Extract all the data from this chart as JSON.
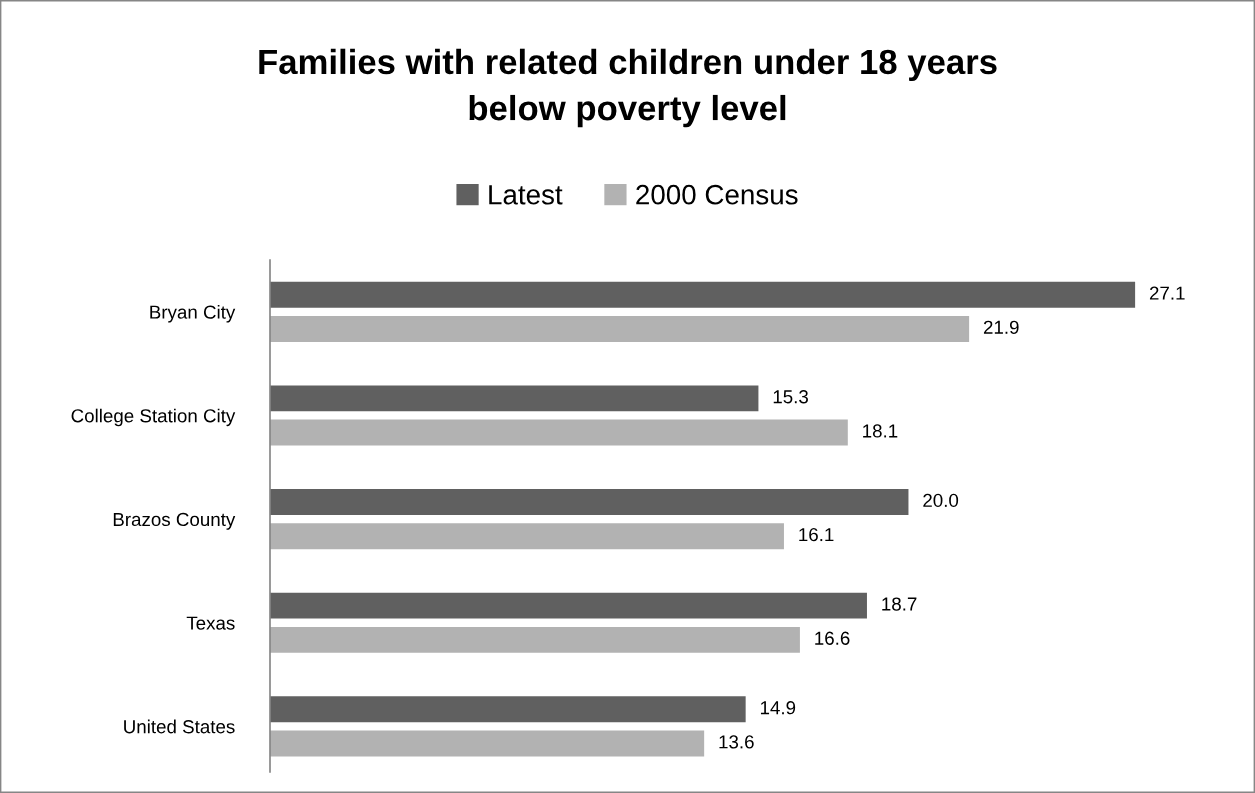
{
  "chart_data": {
    "type": "bar",
    "orientation": "horizontal",
    "title": "Families with related children under 18 years\nbelow poverty level",
    "categories": [
      "Bryan City",
      "College Station City",
      "Brazos County",
      "Texas",
      "United States"
    ],
    "series": [
      {
        "name": "Latest",
        "color": "#606060",
        "values": [
          27.1,
          15.3,
          20.0,
          18.7,
          14.9
        ],
        "value_labels": [
          "27.1",
          "15.3",
          "20.0",
          "18.7",
          "14.9"
        ]
      },
      {
        "name": "2000 Census",
        "color": "#b2b2b2",
        "values": [
          21.9,
          18.1,
          16.1,
          16.6,
          13.6
        ],
        "value_labels": [
          "21.9",
          "18.1",
          "16.1",
          "16.6",
          "13.6"
        ]
      }
    ],
    "legend": "top",
    "tick_labels": "y"
  }
}
